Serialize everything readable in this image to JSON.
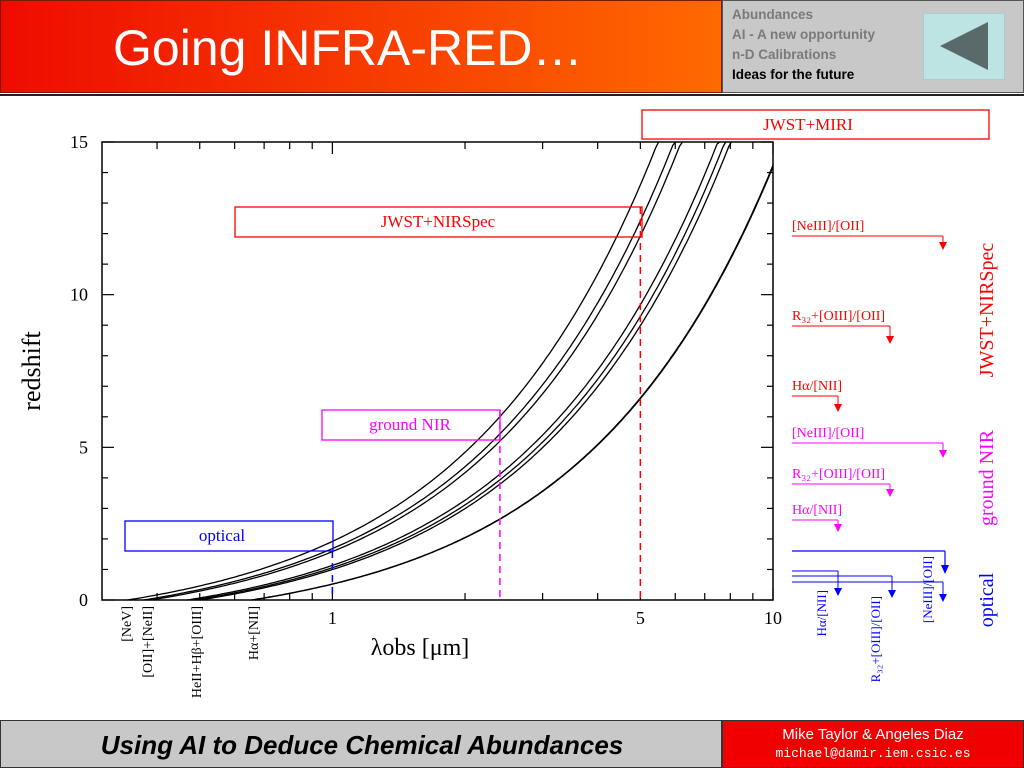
{
  "header": {
    "title": "Going INFRA-RED…",
    "nav": [
      "Abundances",
      "AI - A new opportunity",
      "n-D Calibrations",
      "Ideas for the future"
    ],
    "active_nav_index": 3
  },
  "footer": {
    "title": "Using AI to Deduce Chemical Abundances",
    "authors": "Mike Taylor & Angeles Diaz",
    "email": "michael@damir.iem.csic.es"
  },
  "colors": {
    "jwst": "#ff0000",
    "ground": "#ff00ff",
    "optical": "#0000ff",
    "curve": "#000000"
  },
  "chart_data": {
    "type": "line",
    "title": "",
    "xlabel": "λobs [μm]",
    "ylabel": "redshift",
    "x_scale": "log",
    "xlim": [
      0.3,
      10
    ],
    "ylim": [
      0,
      15
    ],
    "x_ticks": [
      1,
      5,
      10
    ],
    "y_ticks": [
      0,
      5,
      10,
      15
    ],
    "grid": false,
    "series": [
      {
        "name": "[NeV]",
        "rest_um": 0.3426
      },
      {
        "name": "[OII]",
        "rest_um": 0.3727
      },
      {
        "name": "[NeIII]",
        "rest_um": 0.3869
      },
      {
        "name": "HeII",
        "rest_um": 0.4686
      },
      {
        "name": "Hβ",
        "rest_um": 0.4861
      },
      {
        "name": "[OIII]",
        "rest_um": 0.5007
      },
      {
        "name": "Hα",
        "rest_um": 0.6563
      },
      {
        "name": "[NII]",
        "rest_um": 0.6584
      }
    ],
    "line_labels": [
      {
        "lines": [
          "[NeV]"
        ],
        "x": 0.34
      },
      {
        "lines": [
          "[OII]+[NeII]"
        ],
        "x": 0.38
      },
      {
        "lines": [
          "HeII+Hβ+[OIII]"
        ],
        "x": 0.49
      },
      {
        "lines": [
          "Hα+[NII]"
        ],
        "x": 0.66
      }
    ],
    "regions": [
      {
        "label": "optical",
        "x_limit": 1,
        "color": "#0000ff"
      },
      {
        "label": "ground NIR",
        "x_limit": 2.4,
        "color": "#ff00ff"
      },
      {
        "label": "JWST+NIRSpec",
        "x_limit": 5,
        "color": "#ff0000"
      },
      {
        "label": "JWST+MIRI",
        "color": "#ff0000"
      }
    ],
    "side_groups": [
      {
        "label": "JWST+NIRSpec",
        "color": "#ff0000",
        "diagnostics": [
          "[NeIII]/[OII]",
          "R₃₂+[OIII]/[OII]",
          "Hα/[NII]"
        ]
      },
      {
        "label": "ground NIR",
        "color": "#ff00ff",
        "diagnostics": [
          "[NeIII]/[OII]",
          "R₃₂+[OIII]/[OII]",
          "Hα/[NII]"
        ]
      },
      {
        "label": "optical",
        "color": "#0000ff",
        "diagnostics": [
          "Hα/[NII]",
          "R₃₂+[OIII]/[OII]",
          "[NeIII]/[OII]"
        ]
      }
    ]
  }
}
